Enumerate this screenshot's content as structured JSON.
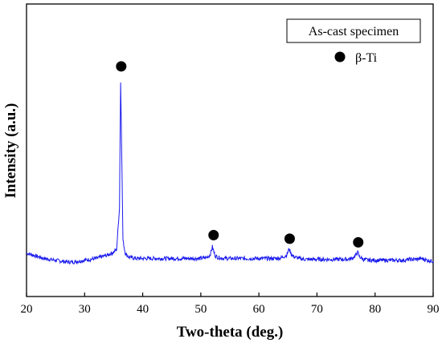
{
  "chart_data": {
    "type": "line",
    "xlabel": "Two-theta (deg.)",
    "ylabel": "Intensity (a.u.)",
    "xlim": [
      20,
      90
    ],
    "x_ticks": [
      "20",
      "30",
      "40",
      "50",
      "60",
      "70",
      "80",
      "90"
    ],
    "y_ticks_shown": false,
    "grid": false,
    "line_color": "#1a1aee",
    "series": [
      {
        "x": [
          20,
          21,
          22,
          23,
          24,
          25,
          26,
          27,
          28,
          29,
          30,
          31,
          32,
          33,
          34,
          35,
          35.5,
          36,
          36.2,
          36.4,
          36.6,
          37,
          37.5,
          38,
          39,
          40,
          41,
          42,
          43,
          44,
          45,
          46,
          47,
          48,
          49,
          50,
          51,
          51.6,
          52,
          52.2,
          52.5,
          53,
          54,
          55,
          56,
          57,
          58,
          59,
          60,
          61,
          62,
          63,
          64,
          64.8,
          65.2,
          65.5,
          66,
          67,
          68,
          69,
          70,
          71,
          72,
          73,
          74,
          75,
          76,
          76.6,
          77,
          77.3,
          78,
          79,
          80,
          81,
          82,
          83,
          84,
          85,
          86,
          87,
          88,
          89,
          90
        ],
        "y": [
          0.05,
          0.04,
          0.03,
          0.02,
          0.015,
          0.01,
          0.005,
          0.0,
          0.0,
          0.005,
          0.01,
          0.015,
          0.02,
          0.03,
          0.04,
          0.055,
          0.07,
          0.3,
          1.0,
          0.6,
          0.12,
          0.05,
          0.03,
          0.025,
          0.02,
          0.02,
          0.02,
          0.02,
          0.02,
          0.02,
          0.02,
          0.02,
          0.02,
          0.02,
          0.02,
          0.02,
          0.025,
          0.04,
          0.085,
          0.06,
          0.035,
          0.025,
          0.02,
          0.02,
          0.02,
          0.02,
          0.02,
          0.02,
          0.02,
          0.02,
          0.02,
          0.02,
          0.025,
          0.04,
          0.075,
          0.05,
          0.03,
          0.02,
          0.015,
          0.015,
          0.015,
          0.015,
          0.015,
          0.015,
          0.015,
          0.015,
          0.02,
          0.035,
          0.055,
          0.03,
          0.015,
          0.01,
          0.01,
          0.01,
          0.01,
          0.01,
          0.01,
          0.01,
          0.015,
          0.015,
          0.02,
          0.01,
          0.005
        ]
      }
    ],
    "markers": {
      "symbol": "filled-circle",
      "color": "#000000",
      "label": "β-Ti",
      "x": [
        36.3,
        52.2,
        65.3,
        77.1
      ],
      "y": [
        1.09,
        0.15,
        0.13,
        0.11
      ]
    },
    "legend": {
      "title": "As-cast specimen",
      "entries": [
        {
          "symbol": "filled-circle",
          "label": "β-Ti"
        }
      ],
      "placement": "top-right"
    }
  }
}
